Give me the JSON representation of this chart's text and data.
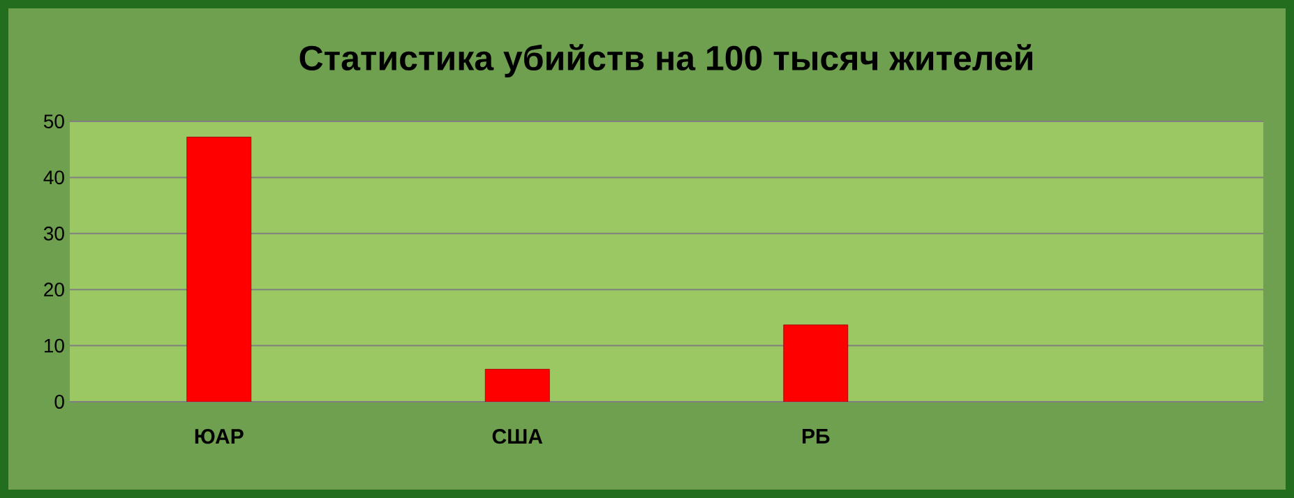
{
  "chart_data": {
    "type": "bar",
    "title": "Статистика убийств на 100 тысяч жителей",
    "categories": [
      "ЮАР",
      "США",
      "РБ",
      null
    ],
    "values": [
      47.2,
      5.8,
      13.7,
      null
    ],
    "color": "#ff0000",
    "ylim": [
      0,
      50
    ],
    "yticks": [
      0,
      10,
      20,
      30,
      40,
      50
    ],
    "grid": "y"
  }
}
